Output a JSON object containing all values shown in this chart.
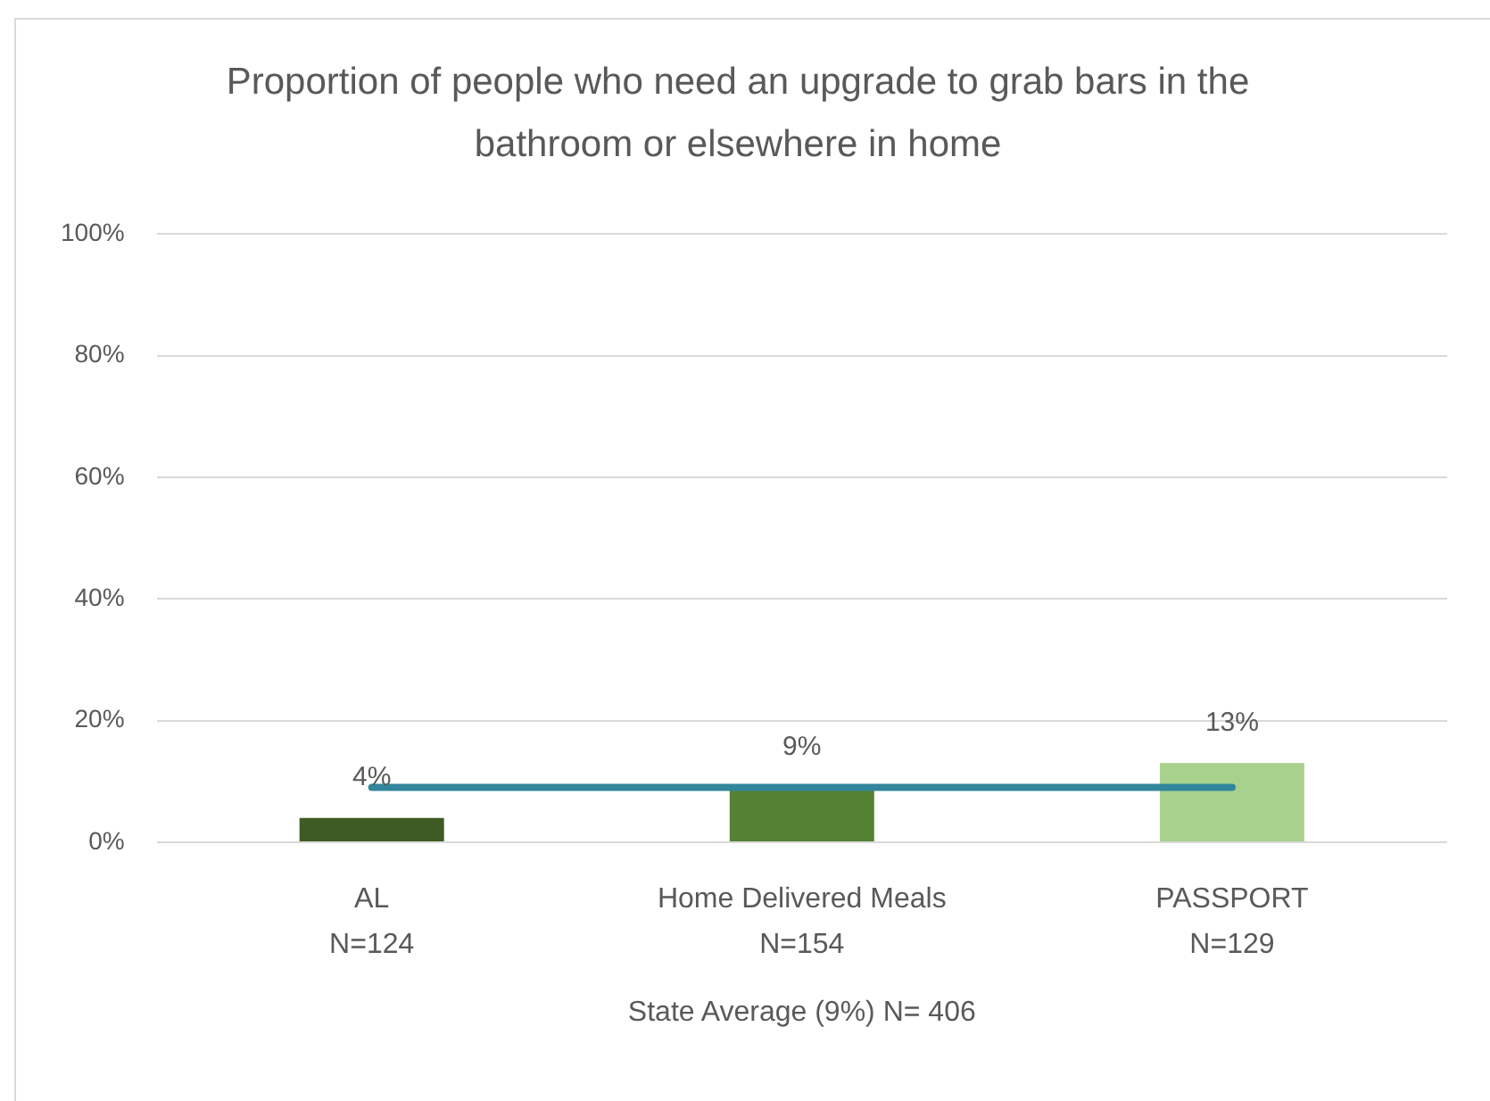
{
  "chart_data": {
    "type": "bar",
    "title": "Proportion of people who need an upgrade to grab bars in the bathroom or elsewhere in home",
    "categories": [
      "AL\nN=124",
      "Home Delivered Meals\nN=154",
      "PASSPORT\nN=129"
    ],
    "xlabel": "State Average (9%) N= 406",
    "series": [
      {
        "colors": [
          "#3e5b24",
          "#548235",
          "#a9d18e"
        ],
        "values": [
          4,
          9,
          13
        ],
        "value_labels": [
          "4%",
          "9%",
          "13%"
        ]
      },
      {
        "type": "line",
        "color": "#31869b",
        "values": [
          9,
          9,
          9
        ],
        "marker": "none"
      }
    ],
    "ylim": [
      0,
      100
    ],
    "yticks": [
      {
        "value": 0,
        "label": "0%"
      },
      {
        "value": 20,
        "label": "20%"
      },
      {
        "value": 40,
        "label": "40%"
      },
      {
        "value": 60,
        "label": "60%"
      },
      {
        "value": 80,
        "label": "80%"
      },
      {
        "value": 100,
        "label": "100%"
      }
    ],
    "grid": "y",
    "legend": false
  }
}
